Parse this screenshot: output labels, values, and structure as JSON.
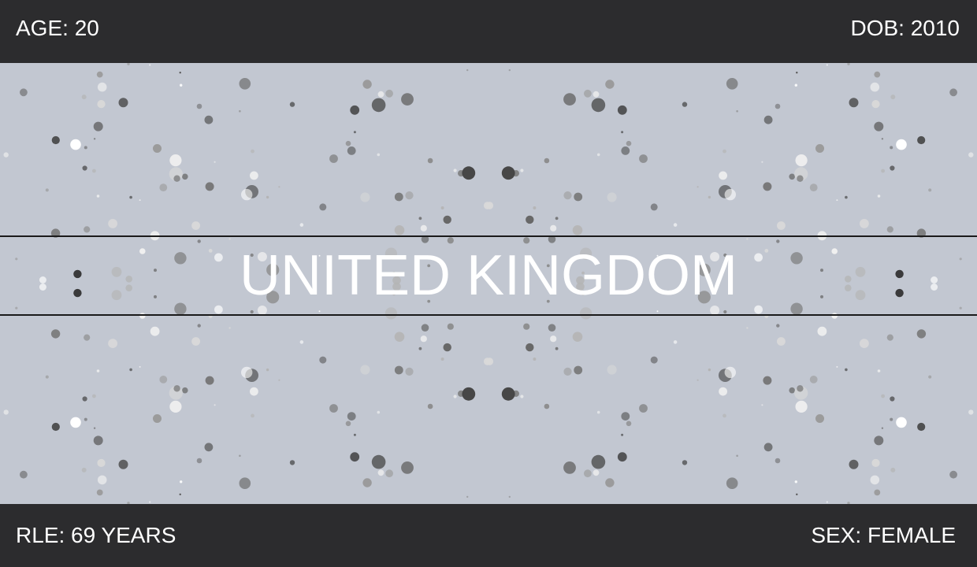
{
  "header": {
    "age_label": "AGE: 20",
    "dob_label": "DOB: 2010"
  },
  "main": {
    "country": "UNITED KINGDOM",
    "background_color": "#c2c7d1"
  },
  "footer": {
    "rle_label": "RLE: 69 YEARS",
    "sex_label": "SEX: FEMALE"
  },
  "colors": {
    "bar": "#2c2c2e",
    "text": "#ffffff"
  }
}
